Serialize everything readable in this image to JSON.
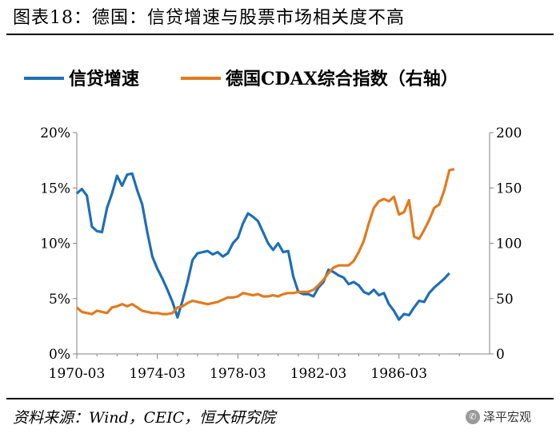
{
  "title": "图表18：德国：信贷增速与股票市场相关度不高",
  "source": "资料来源：Wind，CEIC，恒大研究院",
  "watermark": "泽平宏观",
  "chart_data": {
    "type": "line",
    "legend_position": "top",
    "grid": false,
    "x_tick_labels": [
      "1970-03",
      "1974-03",
      "1978-03",
      "1982-03",
      "1986-03"
    ],
    "x_range": [
      1970.0,
      1990.5
    ],
    "y_left": {
      "min": 0,
      "max": 20,
      "ticks": [
        "0%",
        "5%",
        "10%",
        "15%",
        "20%"
      ]
    },
    "y_right": {
      "min": 0,
      "max": 200,
      "ticks": [
        "0",
        "50",
        "100",
        "150",
        "200"
      ]
    },
    "series": [
      {
        "name": "信贷增速",
        "axis": "left",
        "color": "#1f6fb4",
        "points": [
          [
            1970.0,
            14.5
          ],
          [
            1970.25,
            14.9
          ],
          [
            1970.5,
            14.3
          ],
          [
            1970.75,
            11.5
          ],
          [
            1971.0,
            11.1
          ],
          [
            1971.25,
            11.0
          ],
          [
            1971.5,
            13.2
          ],
          [
            1971.75,
            14.5
          ],
          [
            1972.0,
            16.1
          ],
          [
            1972.25,
            15.2
          ],
          [
            1972.5,
            16.2
          ],
          [
            1972.75,
            16.3
          ],
          [
            1973.0,
            14.8
          ],
          [
            1973.25,
            13.5
          ],
          [
            1973.5,
            11.0
          ],
          [
            1973.75,
            8.8
          ],
          [
            1974.0,
            7.7
          ],
          [
            1974.25,
            6.8
          ],
          [
            1974.5,
            5.8
          ],
          [
            1974.75,
            4.7
          ],
          [
            1975.0,
            3.3
          ],
          [
            1975.25,
            4.8
          ],
          [
            1975.5,
            6.5
          ],
          [
            1975.75,
            8.5
          ],
          [
            1976.0,
            9.1
          ],
          [
            1976.5,
            9.3
          ],
          [
            1976.75,
            9.0
          ],
          [
            1977.0,
            9.2
          ],
          [
            1977.25,
            8.8
          ],
          [
            1977.5,
            9.1
          ],
          [
            1977.75,
            10.0
          ],
          [
            1978.0,
            10.5
          ],
          [
            1978.25,
            11.8
          ],
          [
            1978.5,
            12.7
          ],
          [
            1978.75,
            12.4
          ],
          [
            1979.0,
            12.0
          ],
          [
            1979.25,
            11.0
          ],
          [
            1979.5,
            10.0
          ],
          [
            1979.75,
            9.4
          ],
          [
            1980.0,
            10.0
          ],
          [
            1980.25,
            9.2
          ],
          [
            1980.5,
            9.3
          ],
          [
            1980.75,
            7.0
          ],
          [
            1981.0,
            5.6
          ],
          [
            1981.25,
            5.4
          ],
          [
            1981.5,
            5.4
          ],
          [
            1981.75,
            5.2
          ],
          [
            1982.0,
            6.0
          ],
          [
            1982.25,
            6.5
          ],
          [
            1982.5,
            7.6
          ],
          [
            1982.75,
            7.4
          ],
          [
            1983.0,
            7.1
          ],
          [
            1983.25,
            6.9
          ],
          [
            1983.5,
            6.3
          ],
          [
            1983.75,
            6.5
          ],
          [
            1984.0,
            6.2
          ],
          [
            1984.25,
            5.6
          ],
          [
            1984.5,
            5.4
          ],
          [
            1984.75,
            5.8
          ],
          [
            1985.0,
            5.3
          ],
          [
            1985.25,
            5.5
          ],
          [
            1985.5,
            4.5
          ],
          [
            1985.75,
            3.9
          ],
          [
            1986.0,
            3.1
          ],
          [
            1986.25,
            3.6
          ],
          [
            1986.5,
            3.5
          ],
          [
            1986.75,
            4.2
          ],
          [
            1987.0,
            4.8
          ],
          [
            1987.25,
            4.7
          ],
          [
            1987.5,
            5.5
          ],
          [
            1987.75,
            6.0
          ],
          [
            1988.0,
            6.4
          ],
          [
            1988.25,
            6.8
          ],
          [
            1988.5,
            7.3
          ]
        ]
      },
      {
        "name": "德国CDAX综合指数（右轴）",
        "axis": "right",
        "color": "#e07b1f",
        "points": [
          [
            1970.0,
            42
          ],
          [
            1970.25,
            38
          ],
          [
            1970.5,
            37
          ],
          [
            1970.75,
            36
          ],
          [
            1971.0,
            39
          ],
          [
            1971.25,
            38
          ],
          [
            1971.5,
            37
          ],
          [
            1971.75,
            42
          ],
          [
            1972.0,
            43
          ],
          [
            1972.25,
            45
          ],
          [
            1972.5,
            43
          ],
          [
            1972.75,
            45
          ],
          [
            1973.0,
            42
          ],
          [
            1973.25,
            39
          ],
          [
            1973.5,
            38
          ],
          [
            1973.75,
            37
          ],
          [
            1974.0,
            37
          ],
          [
            1974.25,
            36
          ],
          [
            1974.5,
            36
          ],
          [
            1974.75,
            37
          ],
          [
            1975.0,
            42
          ],
          [
            1975.25,
            43
          ],
          [
            1975.5,
            46
          ],
          [
            1975.75,
            48
          ],
          [
            1976.0,
            47
          ],
          [
            1976.25,
            46
          ],
          [
            1976.5,
            45
          ],
          [
            1976.75,
            46
          ],
          [
            1977.0,
            47
          ],
          [
            1977.25,
            49
          ],
          [
            1977.5,
            51
          ],
          [
            1977.75,
            51
          ],
          [
            1978.0,
            52
          ],
          [
            1978.25,
            55
          ],
          [
            1978.5,
            54
          ],
          [
            1978.75,
            53
          ],
          [
            1979.0,
            54
          ],
          [
            1979.25,
            52
          ],
          [
            1979.5,
            52
          ],
          [
            1979.75,
            53
          ],
          [
            1980.0,
            52
          ],
          [
            1980.25,
            54
          ],
          [
            1980.5,
            55
          ],
          [
            1980.75,
            55
          ],
          [
            1981.0,
            56
          ],
          [
            1981.25,
            56
          ],
          [
            1981.5,
            56
          ],
          [
            1981.75,
            58
          ],
          [
            1982.0,
            62
          ],
          [
            1982.25,
            67
          ],
          [
            1982.5,
            73
          ],
          [
            1982.75,
            78
          ],
          [
            1983.0,
            80
          ],
          [
            1983.25,
            80
          ],
          [
            1983.5,
            80
          ],
          [
            1983.75,
            84
          ],
          [
            1984.0,
            92
          ],
          [
            1984.25,
            102
          ],
          [
            1984.5,
            118
          ],
          [
            1984.75,
            132
          ],
          [
            1985.0,
            138
          ],
          [
            1985.25,
            140
          ],
          [
            1985.5,
            138
          ],
          [
            1985.75,
            142
          ],
          [
            1986.0,
            126
          ],
          [
            1986.25,
            128
          ],
          [
            1986.5,
            139
          ],
          [
            1986.75,
            106
          ],
          [
            1987.0,
            104
          ],
          [
            1987.25,
            112
          ],
          [
            1987.5,
            121
          ],
          [
            1987.75,
            132
          ],
          [
            1988.0,
            135
          ],
          [
            1988.25,
            148
          ],
          [
            1988.5,
            166
          ],
          [
            1988.75,
            167
          ]
        ]
      }
    ]
  }
}
